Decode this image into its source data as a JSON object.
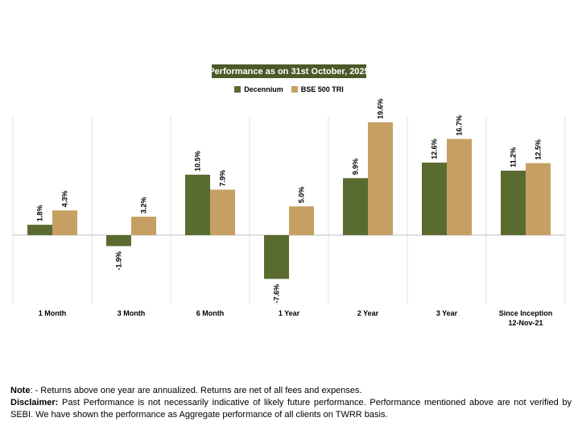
{
  "chart_data": {
    "type": "bar",
    "title": "Performance as on 31st October, 2025",
    "categories": [
      "1 Month",
      "3 Month",
      "6 Month",
      "1 Year",
      "2 Year",
      "3 Year",
      "Since Inception\n12-Nov-21"
    ],
    "series": [
      {
        "name": "Decennium",
        "color": "#5a6b30",
        "values": [
          1.8,
          -1.9,
          10.5,
          -7.6,
          9.9,
          12.6,
          11.2
        ],
        "labels": [
          "1.8%",
          "-1.9%",
          "10.5%",
          "-7.6%",
          "9.9%",
          "12.6%",
          "11.2%"
        ]
      },
      {
        "name": "BSE 500 TRI",
        "color": "#c6a063",
        "values": [
          4.3,
          3.2,
          7.9,
          5.0,
          19.6,
          16.7,
          12.5
        ],
        "labels": [
          "4.3%",
          "3.2%",
          "7.9%",
          "5.0%",
          "19.6%",
          "16.7%",
          "12.5%"
        ]
      }
    ],
    "ylim": [
      -12,
      20
    ],
    "grid": "vertical",
    "legend": "top-center",
    "xlabel": "",
    "ylabel": ""
  },
  "footnote": {
    "note_label": "Note",
    "note_text": ": - Returns above one year are annualized. Returns are net of all fees and expenses.",
    "disclaimer_label": "Disclaimer:",
    "disclaimer_text": " Past Performance is not necessarily indicative of likely future performance. Performance mentioned above are not verified by SEBI. We have shown the performance as Aggregate performance of all clients on TWRR basis."
  }
}
